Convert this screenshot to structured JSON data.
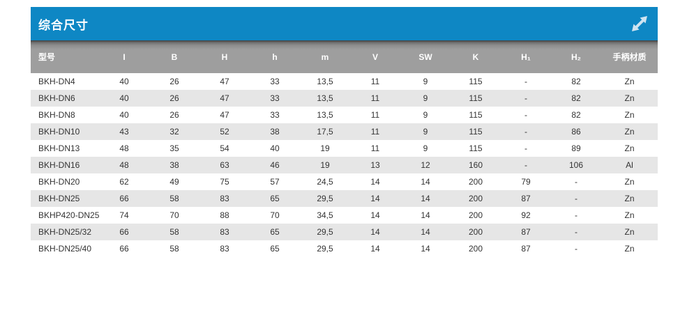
{
  "panel": {
    "title": "综合尺寸",
    "expand_icon": "diagonal-expand-arrow",
    "colors": {
      "header_blue": "#0e87c4",
      "column_header_gray": "#9e9e9e",
      "stripe_gray": "#e6e6e6",
      "text_dark": "#333333",
      "header_text": "#ffffff",
      "icon_light": "#cfe4f1"
    }
  },
  "table": {
    "headers": [
      "型号",
      "I",
      "B",
      "H",
      "h",
      "m",
      "V",
      "SW",
      "K",
      "H₁",
      "H₂",
      "手柄材质"
    ],
    "rows": [
      [
        "BKH-DN4",
        "40",
        "26",
        "47",
        "33",
        "13,5",
        "11",
        "9",
        "115",
        "-",
        "82",
        "Zn"
      ],
      [
        "BKH-DN6",
        "40",
        "26",
        "47",
        "33",
        "13,5",
        "11",
        "9",
        "115",
        "-",
        "82",
        "Zn"
      ],
      [
        "BKH-DN8",
        "40",
        "26",
        "47",
        "33",
        "13,5",
        "11",
        "9",
        "115",
        "-",
        "82",
        "Zn"
      ],
      [
        "BKH-DN10",
        "43",
        "32",
        "52",
        "38",
        "17,5",
        "11",
        "9",
        "115",
        "-",
        "86",
        "Zn"
      ],
      [
        "BKH-DN13",
        "48",
        "35",
        "54",
        "40",
        "19",
        "11",
        "9",
        "115",
        "-",
        "89",
        "Zn"
      ],
      [
        "BKH-DN16",
        "48",
        "38",
        "63",
        "46",
        "19",
        "13",
        "12",
        "160",
        "-",
        "106",
        "Al"
      ],
      [
        "BKH-DN20",
        "62",
        "49",
        "75",
        "57",
        "24,5",
        "14",
        "14",
        "200",
        "79",
        "-",
        "Zn"
      ],
      [
        "BKH-DN25",
        "66",
        "58",
        "83",
        "65",
        "29,5",
        "14",
        "14",
        "200",
        "87",
        "-",
        "Zn"
      ],
      [
        "BKHP420-DN25",
        "74",
        "70",
        "88",
        "70",
        "34,5",
        "14",
        "14",
        "200",
        "92",
        "-",
        "Zn"
      ],
      [
        "BKH-DN25/32",
        "66",
        "58",
        "83",
        "65",
        "29,5",
        "14",
        "14",
        "200",
        "87",
        "-",
        "Zn"
      ],
      [
        "BKH-DN25/40",
        "66",
        "58",
        "83",
        "65",
        "29,5",
        "14",
        "14",
        "200",
        "87",
        "-",
        "Zn"
      ]
    ]
  }
}
